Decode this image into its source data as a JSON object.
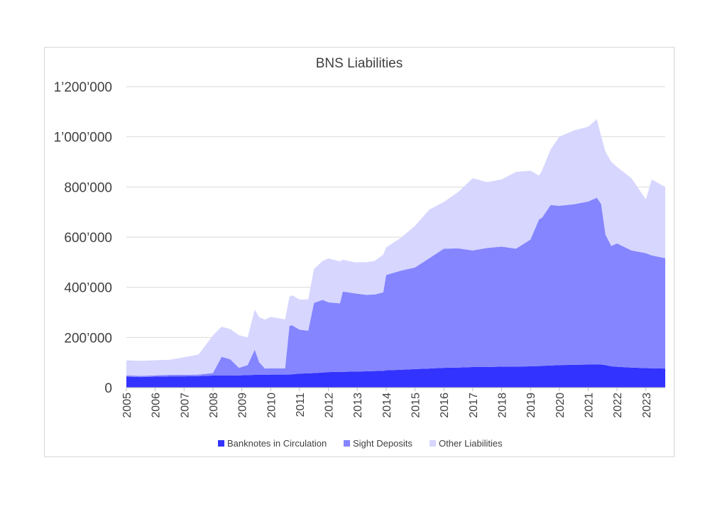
{
  "chart_data": {
    "type": "area",
    "stacked": true,
    "title": "BNS Liabilities",
    "xlabel": "",
    "ylabel": "",
    "ylim": [
      0,
      1200000
    ],
    "xlim": [
      2005.0,
      2023.67
    ],
    "grid": true,
    "legend_position": "bottom",
    "yticks": [
      {
        "value": 0,
        "label": "0"
      },
      {
        "value": 200000,
        "label": "200’000"
      },
      {
        "value": 400000,
        "label": "400’000"
      },
      {
        "value": 600000,
        "label": "600’000"
      },
      {
        "value": 800000,
        "label": "800’000"
      },
      {
        "value": 1000000,
        "label": "1’000’000"
      },
      {
        "value": 1200000,
        "label": "1’200’000"
      }
    ],
    "xticks": [
      "2005",
      "2006",
      "2007",
      "2008",
      "2009",
      "2010",
      "2011",
      "2012",
      "2013",
      "2014",
      "2015",
      "2016",
      "2017",
      "2018",
      "2019",
      "2020",
      "2021",
      "2022",
      "2023"
    ],
    "x": [
      2005.0,
      2005.5,
      2006.0,
      2006.5,
      2007.0,
      2007.5,
      2008.0,
      2008.3,
      2008.6,
      2008.9,
      2009.2,
      2009.45,
      2009.6,
      2009.8,
      2010.0,
      2010.5,
      2010.65,
      2010.75,
      2011.0,
      2011.3,
      2011.5,
      2011.8,
      2012.0,
      2012.4,
      2012.5,
      2012.9,
      2013.3,
      2013.6,
      2013.9,
      2014.0,
      2014.5,
      2015.0,
      2015.5,
      2016.0,
      2016.5,
      2017.0,
      2017.5,
      2018.0,
      2018.5,
      2019.0,
      2019.3,
      2019.4,
      2019.7,
      2020.0,
      2020.5,
      2021.0,
      2021.3,
      2021.45,
      2021.6,
      2021.8,
      2022.0,
      2022.5,
      2023.0,
      2023.2,
      2023.67
    ],
    "series": [
      {
        "name": "Banknotes in Circulation",
        "color": "#3333ff",
        "values": [
          44000,
          42000,
          44000,
          45000,
          45000,
          46000,
          48000,
          48000,
          48000,
          49000,
          50000,
          51000,
          51000,
          51000,
          52000,
          52000,
          52000,
          53000,
          56000,
          57000,
          58000,
          60000,
          62000,
          63000,
          63000,
          64000,
          65000,
          66000,
          67000,
          69000,
          71000,
          74000,
          76000,
          79000,
          80000,
          82000,
          82000,
          84000,
          84000,
          85000,
          86000,
          87000,
          88000,
          90000,
          91000,
          92000,
          92000,
          92000,
          90000,
          85000,
          83000,
          80000,
          78000,
          77000,
          76000
        ]
      },
      {
        "name": "Sight Deposits",
        "color": "#8585ff",
        "values": [
          5000,
          5000,
          5000,
          6000,
          6000,
          6000,
          10000,
          75000,
          65000,
          30000,
          40000,
          100000,
          50000,
          25000,
          25000,
          25000,
          195000,
          195000,
          175000,
          170000,
          280000,
          290000,
          278000,
          273000,
          320000,
          312000,
          305000,
          305000,
          313000,
          380000,
          395000,
          405000,
          440000,
          475000,
          475000,
          465000,
          475000,
          478000,
          470000,
          505000,
          585000,
          590000,
          640000,
          635000,
          640000,
          650000,
          665000,
          640000,
          520000,
          480000,
          492000,
          467000,
          458000,
          450000,
          440000
        ]
      },
      {
        "name": "Other Liabilities",
        "color": "#d6d6ff",
        "values": [
          60000,
          60000,
          60000,
          60000,
          70000,
          80000,
          150000,
          120000,
          120000,
          130000,
          110000,
          160000,
          180000,
          195000,
          205000,
          195000,
          115000,
          120000,
          120000,
          125000,
          135000,
          155000,
          175000,
          167000,
          127000,
          124000,
          130000,
          134000,
          150000,
          110000,
          130000,
          166000,
          194000,
          186000,
          225000,
          288000,
          262000,
          268000,
          306000,
          275000,
          174000,
          188000,
          222000,
          275000,
          294000,
          298000,
          313000,
          270000,
          330000,
          335000,
          305000,
          288000,
          214000,
          303000,
          284000
        ]
      }
    ]
  }
}
